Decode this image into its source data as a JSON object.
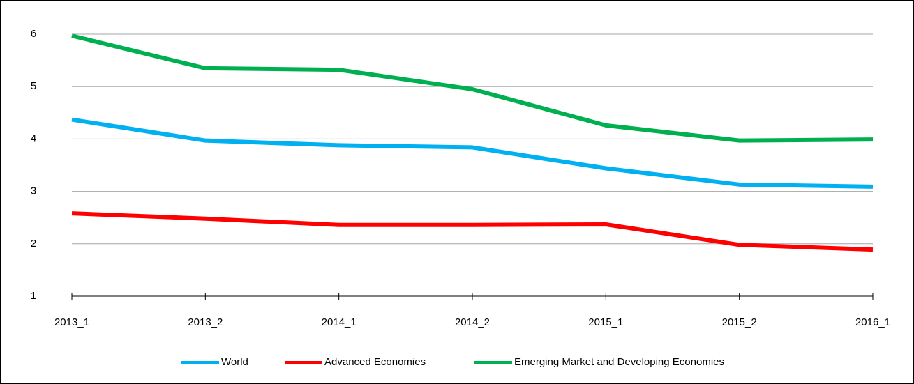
{
  "chart_data": {
    "type": "line",
    "categories": [
      "2013_1",
      "2013_2",
      "2014_1",
      "2014_2",
      "2015_1",
      "2015_2",
      "2016_1"
    ],
    "series": [
      {
        "name": "World",
        "color": "#00b0f0",
        "values": [
          4.37,
          3.97,
          3.88,
          3.84,
          3.44,
          3.13,
          3.09
        ]
      },
      {
        "name": "Advanced Economies",
        "color": "#ff0000",
        "values": [
          2.58,
          2.48,
          2.36,
          2.36,
          2.37,
          1.98,
          1.89
        ]
      },
      {
        "name": "Emerging Market and Developing Economies",
        "color": "#00b050",
        "values": [
          5.97,
          5.35,
          5.32,
          4.95,
          4.26,
          3.97,
          3.99
        ]
      }
    ],
    "ylim": [
      1,
      6
    ],
    "yticks": [
      1,
      2,
      3,
      4,
      5,
      6
    ],
    "grid": true,
    "legend": "bottom"
  }
}
